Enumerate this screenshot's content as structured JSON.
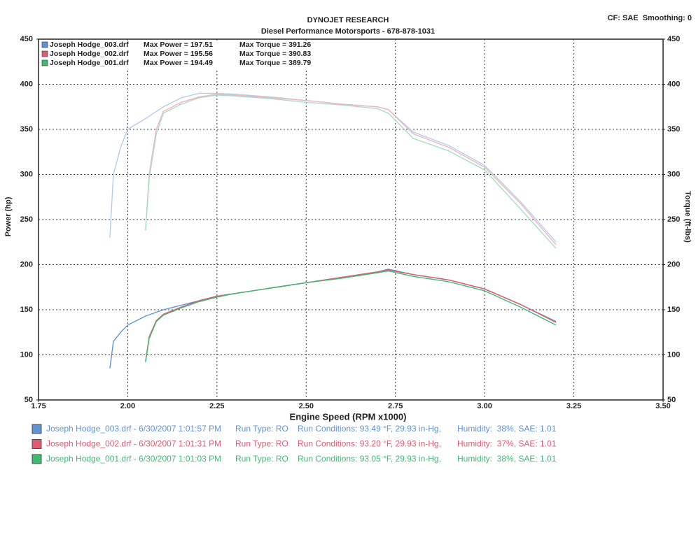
{
  "chart_data": {
    "type": "line",
    "title": "DYNOJET RESEARCH",
    "subtitle": "Diesel Performance Motorsports - 678-878-1031",
    "settings_text": "CF: SAE  Smoothing: 0",
    "xlabel": "Engine Speed (RPM x1000)",
    "ylabel": "Power (hp)",
    "y2label": "Torque (ft-lbs)",
    "xlim": [
      1.75,
      3.5
    ],
    "xticks": [
      1.75,
      {
        "value": 2,
        "label": "2.00"
      },
      2.25,
      {
        "value": 2.5,
        "label": "2.50"
      },
      2.75,
      {
        "value": 3,
        "label": "3.00"
      },
      3.25,
      {
        "value": 3.5,
        "label": "3.50"
      }
    ],
    "ylim": [
      50,
      450
    ],
    "yticks": [
      50,
      100,
      150,
      200,
      250,
      300,
      350,
      400,
      450
    ],
    "y2lim": [
      50,
      450
    ],
    "y2ticks": [
      50,
      100,
      150,
      200,
      250,
      300,
      350,
      400,
      450
    ],
    "grid": true,
    "runs": [
      {
        "name": "Joseph Hodge_003.drf",
        "max_power": "Max Power = 197.51",
        "max_torque": "Max Torque = 391.26",
        "run_info": "Joseph Hodge_003.drf - 6/30/2007 1:01:57 PM",
        "run_type": "Run Type: RO",
        "conditions": "Run Conditions: 93.49 °F, 29.93 in-Hg,",
        "humidity": "Humidity:  38%, SAE: 1.01",
        "color": "#5f93d3"
      },
      {
        "name": "Joseph Hodge_002.drf",
        "max_power": "Max Power = 195.56",
        "max_torque": "Max Torque = 390.83",
        "run_info": "Joseph Hodge_002.drf - 6/30/2007 1:01:31 PM",
        "run_type": "Run Type: RO",
        "conditions": "Run Conditions: 93.20 °F, 29.93 in-Hg,",
        "humidity": "Humidity:  37%, SAE: 1.01",
        "color": "#de5c72"
      },
      {
        "name": "Joseph Hodge_001.drf",
        "max_power": "Max Power = 194.49",
        "max_torque": "Max Torque = 389.79",
        "run_info": "Joseph Hodge_001.drf - 6/30/2007 1:01:03 PM",
        "run_type": "Run Type: RO",
        "conditions": "Run Conditions: 93.05 °F, 29.93 in-Hg,",
        "humidity": "Humidity:  38%, SAE: 1.01",
        "color": "#3fba72"
      }
    ],
    "series": [
      {
        "color": "#5f93d3",
        "x": [
          1.95,
          1.96,
          1.98,
          2.0,
          2.05,
          2.1,
          2.15,
          2.2,
          2.25,
          2.3,
          2.4,
          2.5,
          2.6,
          2.7,
          2.73,
          2.8,
          2.9,
          3.0,
          3.1,
          3.2
        ],
        "values": [
          85,
          115,
          125,
          133,
          143,
          150,
          155,
          160,
          165,
          168,
          174,
          180,
          186,
          192,
          195,
          189,
          183,
          173,
          156,
          137
        ]
      },
      {
        "color": "#de5c72",
        "x": [
          2.05,
          2.06,
          2.08,
          2.1,
          2.15,
          2.2,
          2.25,
          2.3,
          2.4,
          2.5,
          2.6,
          2.7,
          2.73,
          2.8,
          2.9,
          3.0,
          3.1,
          3.2
        ],
        "values": [
          93,
          120,
          138,
          145,
          153,
          160,
          165,
          168,
          174,
          180,
          186,
          192,
          194,
          189,
          183,
          173,
          156,
          136
        ]
      },
      {
        "color": "#3fba72",
        "x": [
          2.05,
          2.06,
          2.08,
          2.1,
          2.15,
          2.2,
          2.25,
          2.3,
          2.4,
          2.5,
          2.6,
          2.7,
          2.73,
          2.8,
          2.9,
          3.0,
          3.1,
          3.2
        ],
        "values": [
          92,
          118,
          137,
          144,
          152,
          159,
          164,
          168,
          174,
          180,
          185,
          191,
          193,
          187,
          181,
          171,
          153,
          133
        ]
      },
      {
        "color": "#b5cdee",
        "axis": "y2",
        "x": [
          1.95,
          1.96,
          1.98,
          2.0,
          2.05,
          2.1,
          2.15,
          2.2,
          2.25,
          2.3,
          2.4,
          2.5,
          2.6,
          2.7,
          2.73,
          2.8,
          2.9,
          3.0,
          3.1,
          3.2
        ],
        "values": [
          230,
          300,
          330,
          350,
          362,
          375,
          385,
          390,
          390,
          389,
          386,
          382,
          378,
          375,
          372,
          347,
          332,
          310,
          270,
          225
        ]
      },
      {
        "color": "#f0b5c0",
        "axis": "y2",
        "x": [
          2.05,
          2.06,
          2.08,
          2.1,
          2.15,
          2.2,
          2.25,
          2.3,
          2.4,
          2.5,
          2.6,
          2.7,
          2.73,
          2.8,
          2.9,
          3.0,
          3.1,
          3.2
        ],
        "values": [
          238,
          300,
          350,
          370,
          380,
          386,
          389,
          388,
          385,
          382,
          378,
          375,
          372,
          345,
          330,
          308,
          268,
          222
        ]
      },
      {
        "color": "#a6dfbf",
        "axis": "y2",
        "x": [
          2.05,
          2.06,
          2.08,
          2.1,
          2.15,
          2.2,
          2.25,
          2.3,
          2.4,
          2.5,
          2.6,
          2.7,
          2.73,
          2.8,
          2.9,
          3.0,
          3.1,
          3.2
        ],
        "values": [
          238,
          295,
          345,
          368,
          378,
          385,
          388,
          387,
          384,
          380,
          377,
          373,
          368,
          340,
          326,
          305,
          262,
          218
        ]
      }
    ]
  }
}
